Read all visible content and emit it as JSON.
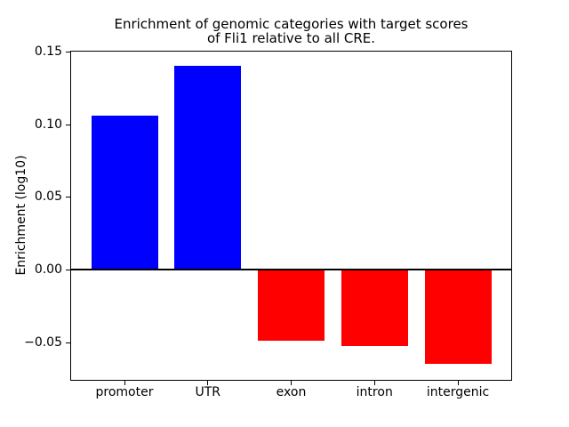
{
  "chart_data": {
    "type": "bar",
    "title": "Enrichment of genomic categories with target scores\nof Fli1 relative to all CRE.",
    "title_line1": "Enrichment of genomic categories with target scores",
    "title_line2": "of Fli1 relative to all CRE.",
    "ylabel": "Enrichment (log10)",
    "xlabel": "",
    "categories": [
      "promoter",
      "UTR",
      "exon",
      "intron",
      "intergenic"
    ],
    "values": [
      0.106,
      0.14,
      -0.049,
      -0.053,
      -0.065
    ],
    "bar_colors": [
      "#0000ff",
      "#0000ff",
      "#ff0000",
      "#ff0000",
      "#ff0000"
    ],
    "positive_color": "#0000ff",
    "negative_color": "#ff0000",
    "yticks": [
      0.15,
      0.1,
      0.05,
      0.0,
      -0.05
    ],
    "ytick_labels": [
      "0.15",
      "0.10",
      "0.05",
      "0.00",
      "−0.05"
    ],
    "ylim": [
      -0.076,
      0.15
    ],
    "xlim": [
      -0.64,
      4.64
    ],
    "bar_width_frac": 0.8,
    "zero_line": true,
    "grid": false,
    "legend": false,
    "background_color": "#ffffff",
    "text_color": "#000000"
  }
}
